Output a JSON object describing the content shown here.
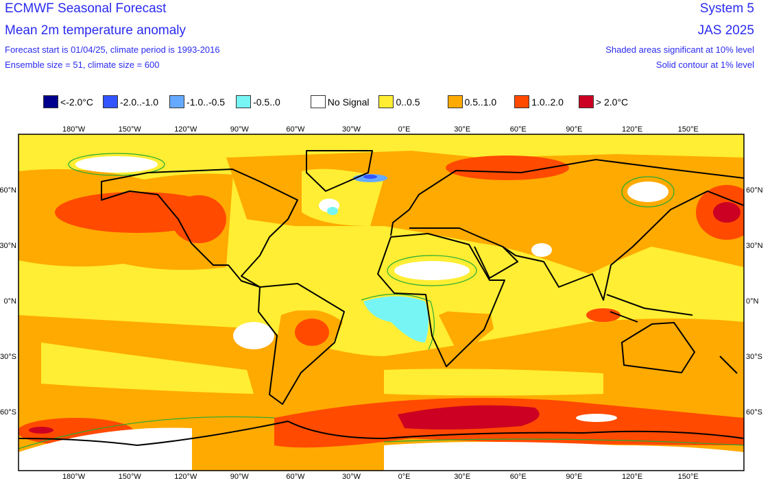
{
  "header": {
    "title": "ECMWF Seasonal Forecast",
    "subtitle": "Mean 2m temperature anomaly",
    "line1": "Forecast start is 01/04/25, climate period is 1993-2016",
    "line2": "Ensemble size = 51, climate size = 600",
    "system": "System 5",
    "season": "JAS 2025",
    "note1": "Shaded areas significant at 10% level",
    "note2": "Solid contour at 1% level"
  },
  "legend": [
    {
      "label": "<-2.0°C",
      "color": "#00008c"
    },
    {
      "label": "-2.0..-1.0",
      "color": "#3355ff"
    },
    {
      "label": "-1.0..-0.5",
      "color": "#66aaff"
    },
    {
      "label": "-0.5..0",
      "color": "#77f5f5"
    },
    {
      "label": "No Signal",
      "color": "#ffffff"
    },
    {
      "label": "0..0.5",
      "color": "#ffee33"
    },
    {
      "label": "0.5..1.0",
      "color": "#ffaa00"
    },
    {
      "label": "1.0..2.0",
      "color": "#ff4a00"
    },
    {
      "label": "> 2.0°C",
      "color": "#cc0022"
    }
  ],
  "lon_ticks": [
    "180°W",
    "150°W",
    "120°W",
    "90°W",
    "60°W",
    "30°W",
    "0°E",
    "30°E",
    "60°E",
    "90°E",
    "120°E",
    "150°E"
  ],
  "lat_ticks": [
    "60°N",
    "30°N",
    "0°N",
    "30°S",
    "60°S"
  ]
}
